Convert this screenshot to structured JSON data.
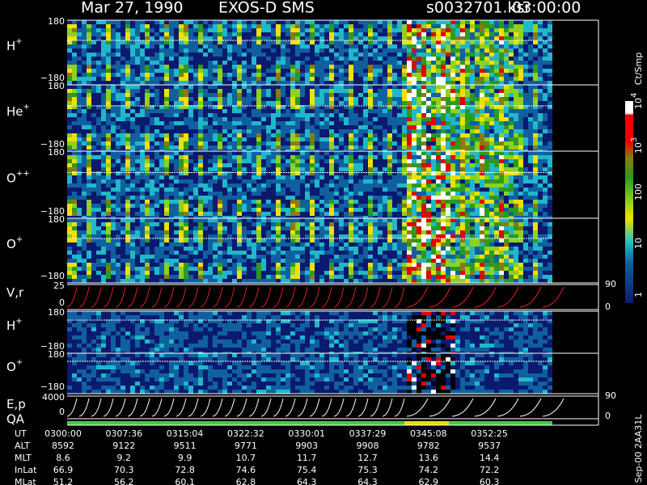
{
  "header": {
    "date": "Mar 27, 1990",
    "instrument": "EXOS-D SMS",
    "file": "s0032701.ksr",
    "time": "03:00:00"
  },
  "panels": [
    {
      "label": {
        "base": "H",
        "sup": "+"
      },
      "top": "180",
      "bottom": "−180"
    },
    {
      "label": {
        "base": "He",
        "sup": "+"
      },
      "top": "180",
      "bottom": "−180"
    },
    {
      "label": {
        "base": "O",
        "sup": "++"
      },
      "top": "180",
      "bottom": "−180"
    },
    {
      "label": {
        "base": "O",
        "sup": "+"
      },
      "top": "180",
      "bottom": "−180"
    },
    {
      "label": {
        "base": "V,r"
      },
      "top": "25",
      "bottom": "0",
      "right_top": "90",
      "right_bottom": "0"
    },
    {
      "label": {
        "base": "H",
        "sup": "+"
      },
      "top": "180",
      "bottom": "−180"
    },
    {
      "label": {
        "base": "O",
        "sup": "+"
      },
      "top": "180",
      "bottom": "−180"
    },
    {
      "label": {
        "base": "E,p"
      },
      "top": "4000",
      "bottom": "0",
      "right_top": "90",
      "right_bottom": "0"
    }
  ],
  "qa": "QA",
  "colorbar": {
    "unit": "Ct/Smp",
    "labels": [
      {
        "base": "10",
        "sup": "4"
      },
      {
        "base": "10",
        "sup": "3"
      },
      {
        "base": "100"
      },
      {
        "base": "10"
      },
      {
        "base": "1"
      }
    ]
  },
  "table": {
    "rows": [
      {
        "name": "UT",
        "values": [
          "0300:00",
          "0307:36",
          "0315:04",
          "0322:32",
          "0330:01",
          "0337:29",
          "0345:08",
          "0352:25"
        ]
      },
      {
        "name": "ALT",
        "values": [
          "8592",
          "9122",
          "9511",
          "9771",
          "9903",
          "9908",
          "9782",
          "9537"
        ]
      },
      {
        "name": "MLT",
        "values": [
          "8.6",
          "9.2",
          "9.9",
          "10.7",
          "11.7",
          "12.7",
          "13.6",
          "14.4"
        ]
      },
      {
        "name": "InLat",
        "values": [
          "66.9",
          "70.3",
          "72.8",
          "74.6",
          "75.4",
          "75.3",
          "74.2",
          "72.2"
        ]
      },
      {
        "name": "MLat",
        "values": [
          "51.2",
          "56.2",
          "60.1",
          "62.8",
          "64.3",
          "64.3",
          "62.9",
          "60.3"
        ]
      }
    ]
  },
  "footer": "Sep-00 2AA31L"
}
